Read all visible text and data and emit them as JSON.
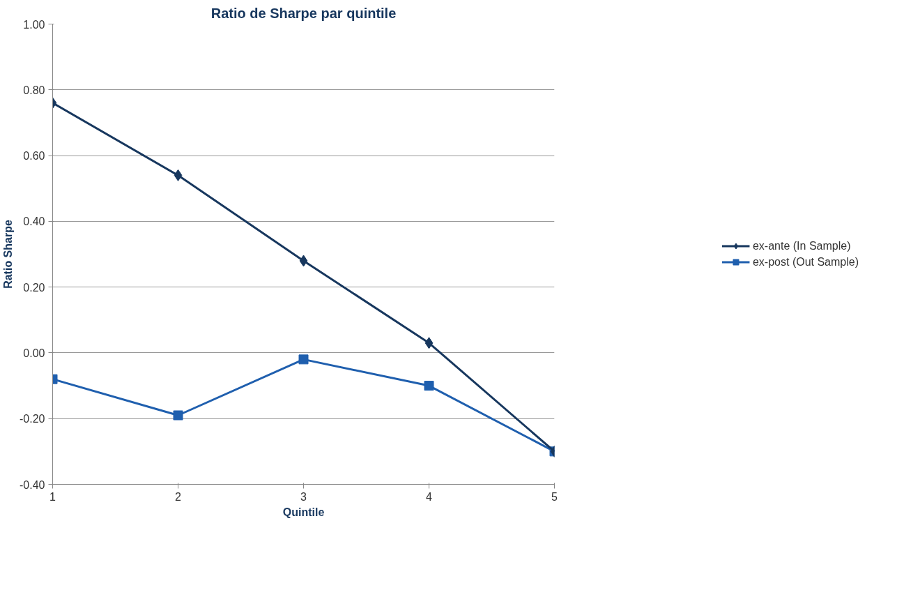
{
  "chart_data": {
    "type": "line",
    "title": "Ratio de Sharpe par quintile",
    "xlabel": "Quintile",
    "ylabel": "Ratio Sharpe",
    "x": [
      1,
      2,
      3,
      4,
      5
    ],
    "xlim": [
      1,
      5
    ],
    "xticks": [
      1,
      2,
      3,
      4,
      5
    ],
    "ylim": [
      -0.4,
      1.0
    ],
    "yticks": [
      {
        "value": -0.4,
        "label": "-0.40"
      },
      {
        "value": -0.2,
        "label": "-0.20"
      },
      {
        "value": 0,
        "label": "0.00"
      },
      {
        "value": 0.2,
        "label": "0.20"
      },
      {
        "value": 0.4,
        "label": "0.40"
      },
      {
        "value": 0.6,
        "label": "0.60"
      },
      {
        "value": 0.8,
        "label": "0.80"
      },
      {
        "value": 1.0,
        "label": "1.00"
      }
    ],
    "grid": "y",
    "legend": "right",
    "series": [
      {
        "name": "ex-ante (In Sample)",
        "color": "#17375e",
        "marker": "diamond",
        "values": [
          0.76,
          0.54,
          0.28,
          0.03,
          -0.3
        ]
      },
      {
        "name": "ex-post (Out Sample)",
        "color": "#1f5fae",
        "marker": "square",
        "values": [
          -0.08,
          -0.19,
          -0.02,
          -0.1,
          -0.3
        ]
      }
    ]
  }
}
